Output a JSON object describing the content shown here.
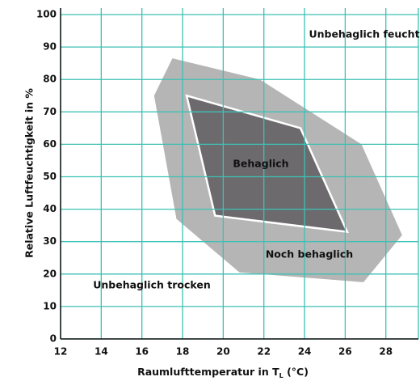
{
  "chart_data": {
    "type": "polygon",
    "x_label": {
      "text": "Raumlufttemperatur in T",
      "subscript": "L",
      "suffix": " (°C)"
    },
    "y_label": "Relative Luftfeuchtigkeit in %",
    "xlim": [
      12,
      29.6
    ],
    "ylim": [
      0,
      102
    ],
    "xticks": [
      12,
      14,
      16,
      18,
      20,
      22,
      24,
      26,
      28
    ],
    "yticks": [
      0,
      10,
      20,
      30,
      40,
      50,
      60,
      70,
      80,
      90,
      100
    ],
    "grid": true,
    "grid_color": "#3cc1b4",
    "regions": [
      {
        "name": "Noch behaglich",
        "color": "#b5b5b5",
        "x": [
          17.5,
          21.8,
          26.8,
          28.8,
          26.9,
          20.8,
          17.7,
          16.6
        ],
        "y": [
          86.5,
          80,
          60,
          32,
          17.5,
          20.5,
          37,
          75
        ]
      },
      {
        "name": "Behaglich",
        "color": "#6d6a6e",
        "stroke": "#ffffff",
        "x": [
          18.2,
          23.8,
          26.1,
          19.6
        ],
        "y": [
          75,
          65,
          33,
          38
        ]
      }
    ],
    "annotations": [
      "Unbehaglich feucht",
      "Unbehaglich trocken"
    ]
  }
}
